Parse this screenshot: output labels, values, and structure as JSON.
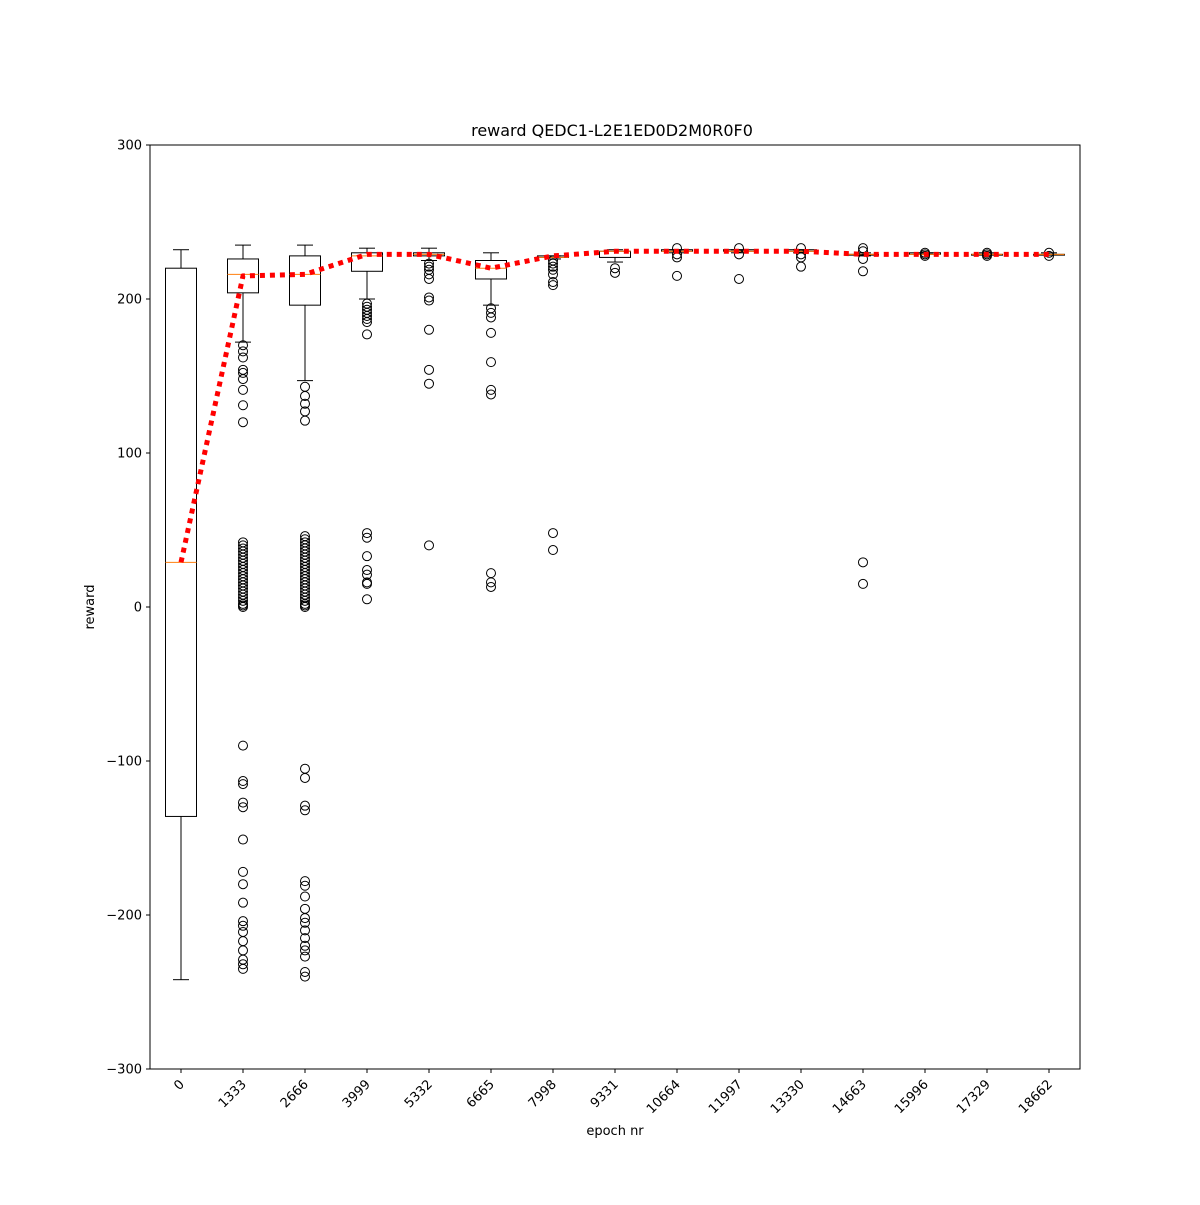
{
  "chart_data": {
    "type": "box",
    "title": "reward QEDC1-L2E1ED0D2M0R0F0",
    "xlabel": "epoch nr",
    "ylabel": "reward",
    "ylim": [
      -300,
      300
    ],
    "yticks": [
      -300,
      -200,
      -100,
      0,
      100,
      200,
      300
    ],
    "ytick_labels": [
      "−300",
      "−200",
      "−100",
      "0",
      "100",
      "200",
      "300"
    ],
    "categories": [
      "0",
      "1333",
      "2666",
      "3999",
      "5332",
      "6665",
      "7998",
      "9331",
      "10664",
      "11997",
      "13330",
      "14663",
      "15996",
      "17329",
      "18662"
    ],
    "grid": false,
    "colors": {
      "box": "#000000",
      "median": "#ff7f0e",
      "mean_line": "#ff0000"
    },
    "boxes": [
      {
        "category": "0",
        "whisker_low": -242,
        "q1": -136,
        "median": 29,
        "q3": 220,
        "whisker_high": 232,
        "outliers": []
      },
      {
        "category": "1333",
        "whisker_low": 172,
        "q1": 204,
        "median": 216,
        "q3": 226,
        "whisker_high": 235,
        "outliers": [
          170,
          166,
          162,
          154,
          152,
          148,
          141,
          131,
          120,
          42,
          40,
          38,
          36,
          34,
          32,
          30,
          28,
          26,
          24,
          22,
          20,
          18,
          16,
          14,
          12,
          10,
          8,
          6,
          4,
          2,
          1,
          0,
          -90,
          -113,
          -115,
          -127,
          -130,
          -151,
          -172,
          -180,
          -192,
          -204,
          -207,
          -211,
          -217,
          -223,
          -229,
          -232,
          -235
        ]
      },
      {
        "category": "2666",
        "whisker_low": 147,
        "q1": 196,
        "median": 216,
        "q3": 228,
        "whisker_high": 235,
        "outliers": [
          143,
          137,
          132,
          127,
          121,
          46,
          44,
          42,
          40,
          38,
          36,
          34,
          32,
          30,
          28,
          26,
          24,
          22,
          20,
          18,
          16,
          14,
          12,
          10,
          8,
          6,
          4,
          2,
          1,
          0,
          -105,
          -111,
          -129,
          -132,
          -178,
          -181,
          -188,
          -196,
          -202,
          -205,
          -210,
          -215,
          -220,
          -223,
          -227,
          -237,
          -240
        ]
      },
      {
        "category": "3999",
        "whisker_low": 200,
        "q1": 218,
        "median": 228,
        "q3": 230,
        "whisker_high": 233,
        "outliers": [
          197,
          195,
          193,
          191,
          189,
          187,
          185,
          177,
          48,
          45,
          33,
          24,
          21,
          16,
          15,
          5
        ]
      },
      {
        "category": "5332",
        "whisker_low": 225,
        "q1": 228,
        "median": 229,
        "q3": 230,
        "whisker_high": 233,
        "outliers": [
          223,
          221,
          219,
          216,
          213,
          201,
          199,
          180,
          154,
          145,
          40
        ]
      },
      {
        "category": "6665",
        "whisker_low": 196,
        "q1": 213,
        "median": 220,
        "q3": 225,
        "whisker_high": 230,
        "outliers": [
          194,
          191,
          188,
          178,
          159,
          141,
          138,
          22,
          16,
          13
        ]
      },
      {
        "category": "7998",
        "whisker_low": 226,
        "q1": 227,
        "median": 227,
        "q3": 228,
        "whisker_high": 228,
        "outliers": [
          225,
          223,
          221,
          219,
          216,
          211,
          209,
          48,
          37
        ]
      },
      {
        "category": "9331",
        "whisker_low": 224,
        "q1": 227,
        "median": 231,
        "q3": 231,
        "whisker_high": 232,
        "outliers": [
          220,
          217
        ]
      },
      {
        "category": "10664",
        "whisker_low": 230,
        "q1": 231,
        "median": 231,
        "q3": 232,
        "whisker_high": 232,
        "outliers": [
          233,
          229,
          227,
          215
        ]
      },
      {
        "category": "11997",
        "whisker_low": 230,
        "q1": 231,
        "median": 231,
        "q3": 232,
        "whisker_high": 232,
        "outliers": [
          233,
          229,
          213
        ]
      },
      {
        "category": "13330",
        "whisker_low": 230,
        "q1": 231,
        "median": 231,
        "q3": 232,
        "whisker_high": 232,
        "outliers": [
          233,
          229,
          227,
          221
        ]
      },
      {
        "category": "14663",
        "whisker_low": 228,
        "q1": 229,
        "median": 229,
        "q3": 229,
        "whisker_high": 230,
        "outliers": [
          233,
          231,
          226,
          218,
          29,
          15
        ]
      },
      {
        "category": "15996",
        "whisker_low": 229,
        "q1": 229,
        "median": 229,
        "q3": 230,
        "whisker_high": 230,
        "outliers": [
          230,
          229,
          228
        ]
      },
      {
        "category": "17329",
        "whisker_low": 229,
        "q1": 229,
        "median": 229,
        "q3": 229,
        "whisker_high": 230,
        "outliers": [
          230,
          229,
          228
        ]
      },
      {
        "category": "18662",
        "whisker_low": 229,
        "q1": 229,
        "median": 229,
        "q3": 229,
        "whisker_high": 230,
        "outliers": [
          230,
          228
        ]
      }
    ],
    "mean_series": {
      "style": "dotted",
      "values": [
        29,
        215,
        216,
        229,
        229,
        220,
        228,
        231,
        231,
        231,
        231,
        229,
        229,
        229,
        229
      ]
    }
  }
}
